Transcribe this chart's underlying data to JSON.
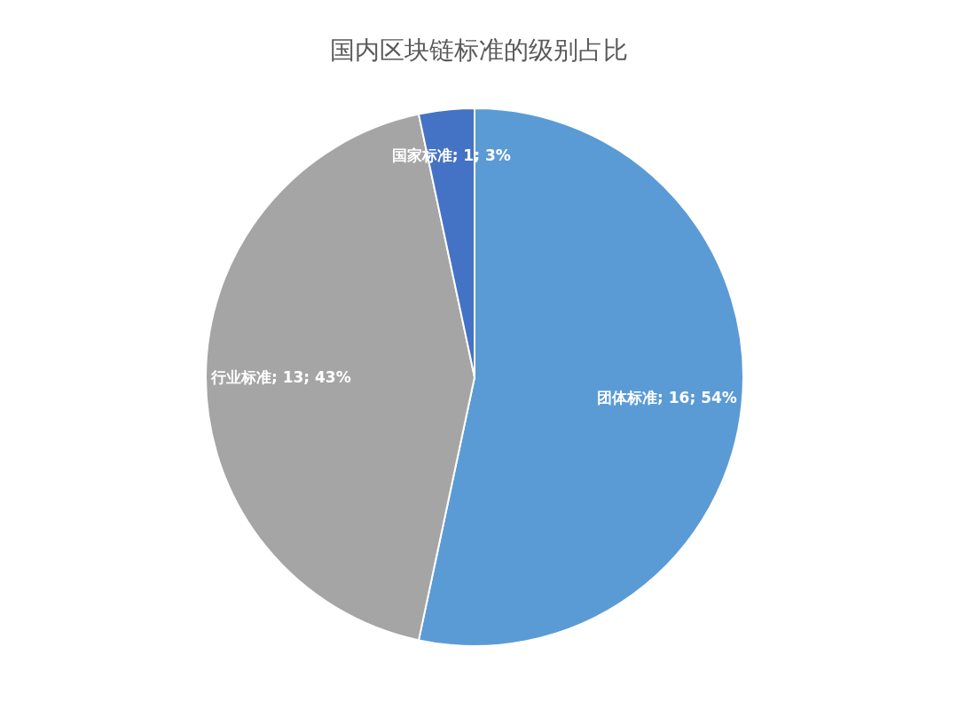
{
  "chart_data": {
    "type": "pie",
    "title": "国内区块链标准的级别占比",
    "categories": [
      "团体标准",
      "行业标准",
      "国家标准"
    ],
    "values": [
      16,
      13,
      1
    ],
    "colors": [
      "#5b9bd5",
      "#a5a5a5",
      "#4472c4"
    ],
    "value_labels": [
      "16; 54%",
      "13; 43%",
      "1; 3%"
    ],
    "legend": false
  }
}
